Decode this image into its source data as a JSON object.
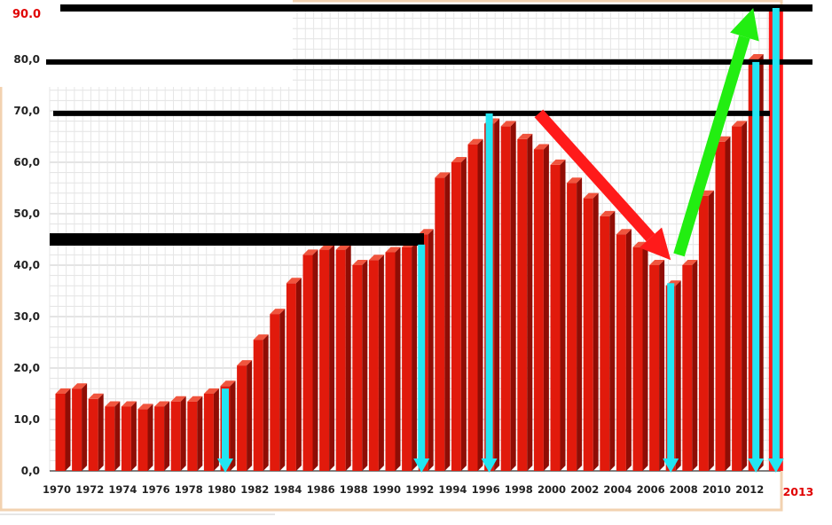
{
  "chart_data": {
    "type": "bar",
    "title": "",
    "xlabel": "",
    "ylabel": "",
    "ylim": [
      0,
      90
    ],
    "y_ticks": [
      "0,0",
      "10,0",
      "20,0",
      "30,0",
      "40,0",
      "50,0",
      "60,0",
      "70,0",
      "80,0"
    ],
    "y_top_label": "90.0",
    "x_tick_labels": [
      "1970",
      "1972",
      "1974",
      "1976",
      "1978",
      "1980",
      "1982",
      "1984",
      "1986",
      "1988",
      "1990",
      "1992",
      "1994",
      "1996",
      "1998",
      "2000",
      "2002",
      "2004",
      "2006",
      "2008",
      "2010",
      "2012"
    ],
    "extra_x_label": "2013",
    "grid": true,
    "bar_color": "#e11a0c",
    "bar_top_color": "#f0553e",
    "bar_side_color": "#8f0d05",
    "categories": [
      1970,
      1971,
      1972,
      1973,
      1974,
      1975,
      1976,
      1977,
      1978,
      1979,
      1980,
      1981,
      1982,
      1983,
      1984,
      1985,
      1986,
      1987,
      1988,
      1989,
      1990,
      1991,
      1992,
      1993,
      1994,
      1995,
      1996,
      1997,
      1998,
      1999,
      2000,
      2001,
      2002,
      2003,
      2004,
      2005,
      2006,
      2007,
      2008,
      2009,
      2010,
      2011,
      2012
    ],
    "values": [
      15,
      16,
      14,
      12.5,
      12.5,
      12,
      12.5,
      13.5,
      13.5,
      15,
      16.5,
      20.5,
      25.5,
      30.5,
      36.5,
      42,
      43,
      43,
      40,
      41,
      42.5,
      43.5,
      46,
      57,
      60,
      63.5,
      67.5,
      67,
      64.5,
      62.5,
      59.5,
      56,
      53,
      49.5,
      46,
      43.5,
      40,
      36,
      40,
      53.5,
      64,
      67,
      80
    ],
    "extra_bar": {
      "year": 2013,
      "value": 90,
      "color": "#ff1a1a"
    },
    "reference_lines": [
      {
        "value": 90,
        "color": "#000000"
      },
      {
        "value": 79.5,
        "color": "#000000"
      },
      {
        "value": 69.5,
        "color": "#000000"
      },
      {
        "value": 45,
        "color": "#000000"
      }
    ],
    "highlight_markers": [
      {
        "year": 1980,
        "value": 16,
        "color": "#22e5f2"
      },
      {
        "year": 1992,
        "value": 44,
        "color": "#22e5f2"
      },
      {
        "year": 1996,
        "value": 69.5,
        "color": "#22e5f2"
      },
      {
        "year": 2007,
        "value": 36.5,
        "color": "#22e5f2"
      },
      {
        "year": 2012,
        "value": 79.5,
        "color": "#22e5f2"
      },
      {
        "year": 2013,
        "value": 90,
        "color": "#22e5f2"
      }
    ],
    "trend_arrows": [
      {
        "from": [
          1999,
          69.5
        ],
        "to": [
          2007,
          41
        ],
        "color": "#ff1a1a",
        "direction": "down"
      },
      {
        "from": [
          2007.5,
          42
        ],
        "to": [
          2012,
          90
        ],
        "color": "#22ee11",
        "direction": "up"
      }
    ]
  }
}
